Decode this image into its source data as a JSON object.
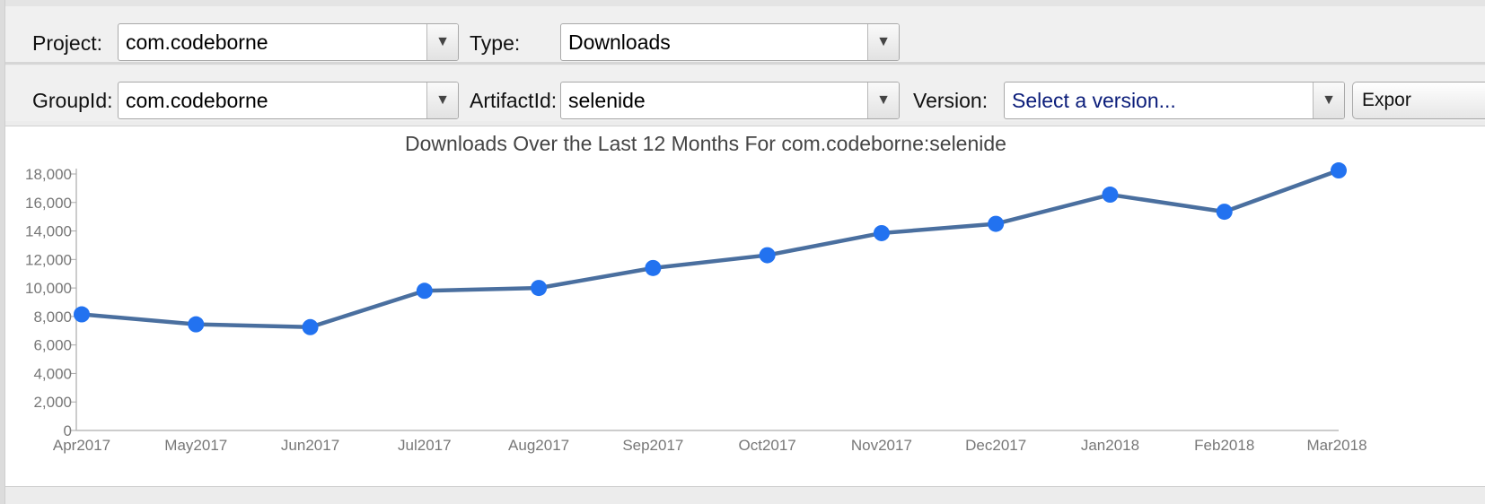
{
  "filters": {
    "project_label": "Project:",
    "project_value": "com.codeborne",
    "type_label": "Type:",
    "type_value": "Downloads",
    "groupid_label": "GroupId:",
    "groupid_value": "com.codeborne",
    "artifactid_label": "ArtifactId:",
    "artifactid_value": "selenide",
    "version_label": "Version:",
    "version_placeholder": "Select a version...",
    "export_label": "Expor"
  },
  "chart_data": {
    "type": "line",
    "title": "Downloads Over the Last 12 Months For com.codeborne:selenide",
    "categories": [
      "Apr2017",
      "May2017",
      "Jun2017",
      "Jul2017",
      "Aug2017",
      "Sep2017",
      "Oct2017",
      "Nov2017",
      "Dec2017",
      "Jan2018",
      "Feb2018",
      "Mar2018"
    ],
    "series": [
      {
        "values": [
          8150,
          7450,
          7250,
          9800,
          10000,
          11400,
          12300,
          13850,
          14500,
          16550,
          15350,
          18250
        ]
      }
    ],
    "ylim": [
      0,
      18000
    ],
    "yticks": [
      0,
      2000,
      4000,
      6000,
      8000,
      10000,
      12000,
      14000,
      16000,
      18000
    ],
    "ytick_labels": [
      "0",
      "2,000",
      "4,000",
      "6,000",
      "8,000",
      "10,000",
      "12,000",
      "14,000",
      "16,000",
      "18,000"
    ],
    "line_color": "#4a6f9f",
    "marker_color": "#2272f0",
    "grid": false
  }
}
